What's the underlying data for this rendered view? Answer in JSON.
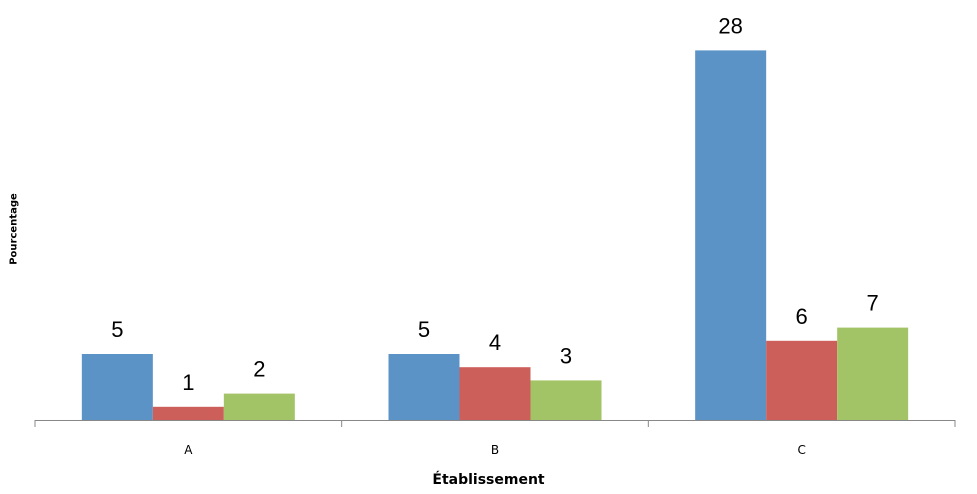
{
  "chart_data": {
    "type": "bar",
    "categories": [
      "A",
      "B",
      "C"
    ],
    "series": [
      {
        "values": [
          5,
          5,
          28
        ],
        "color": "#5b93c7"
      },
      {
        "values": [
          1,
          4,
          6
        ],
        "color": "#cd5f5a"
      },
      {
        "values": [
          2,
          3,
          7
        ],
        "color": "#a3c466"
      }
    ],
    "xlabel": "Établissement",
    "ylabel": "Pourcentage",
    "ylim": [
      0,
      30
    ],
    "grid": false,
    "data_labels": true
  }
}
